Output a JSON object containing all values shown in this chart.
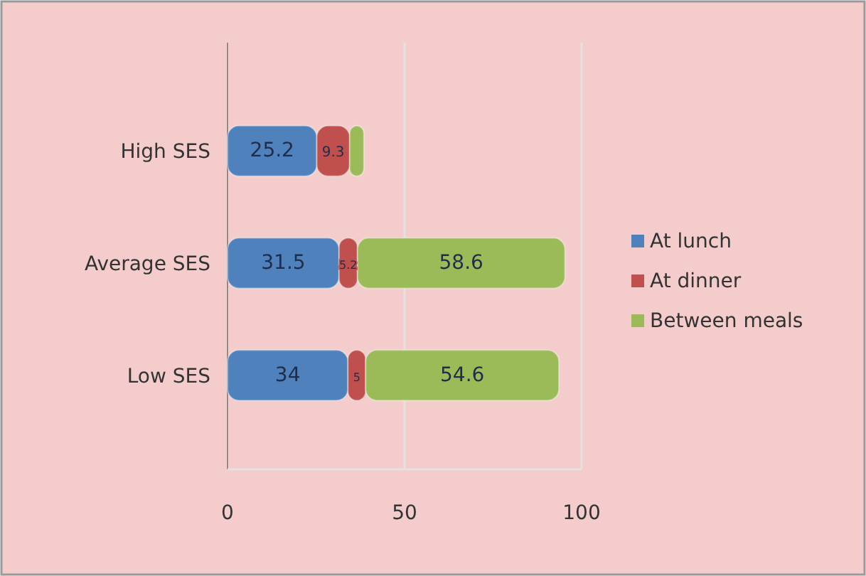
{
  "chart_data": {
    "type": "bar",
    "orientation": "horizontal",
    "stacked": true,
    "categories": [
      "High SES",
      "Average SES",
      "Low SES"
    ],
    "series": [
      {
        "name": "At lunch",
        "color": "#4f81bd",
        "values": [
          25.2,
          31.5,
          34
        ],
        "value_labels": [
          "25.2",
          "31.5",
          "34"
        ]
      },
      {
        "name": "At dinner",
        "color": "#c0504d",
        "values": [
          9.3,
          5.2,
          5
        ],
        "value_labels": [
          "9.3",
          "5.2",
          "5"
        ]
      },
      {
        "name": "Between meals",
        "color": "#9bbb59",
        "values": [
          4,
          58.6,
          54.6
        ],
        "value_labels": [
          null,
          "58.6",
          "54.6"
        ]
      }
    ],
    "xlim": [
      0,
      100
    ],
    "xticks": [
      0,
      50,
      100
    ],
    "grid": "x",
    "legend": "right"
  }
}
